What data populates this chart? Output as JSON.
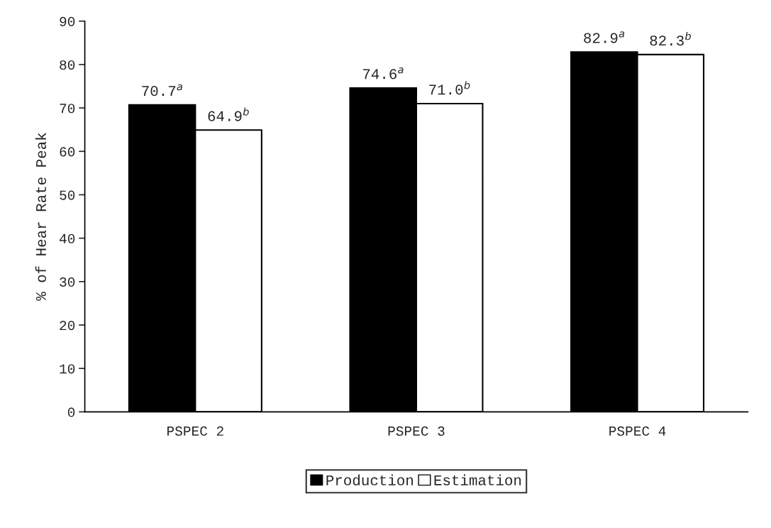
{
  "chart_data": {
    "type": "bar",
    "ylabel": "% of Hear Rate Peak",
    "categories": [
      "PSPEC 2",
      "PSPEC 3",
      "PSPEC 4"
    ],
    "series": [
      {
        "name": "Production",
        "color": "#000000",
        "values": [
          70.7,
          74.6,
          82.9
        ],
        "value_labels": [
          "70.7$^{a}$",
          "74.6$^{a}$",
          "82.9$^{a}$"
        ]
      },
      {
        "name": "Estimation",
        "color": "#ffffff",
        "values": [
          64.9,
          71.0,
          82.3
        ],
        "value_labels": [
          "64.9$^{b}$",
          "71.0$^{b}$",
          "82.3$^{b}$"
        ]
      }
    ],
    "ylim": [
      0,
      90
    ],
    "yticks": [
      0,
      10,
      20,
      30,
      40,
      50,
      60,
      70,
      80,
      90
    ],
    "grid": false,
    "legend": "bottom"
  }
}
